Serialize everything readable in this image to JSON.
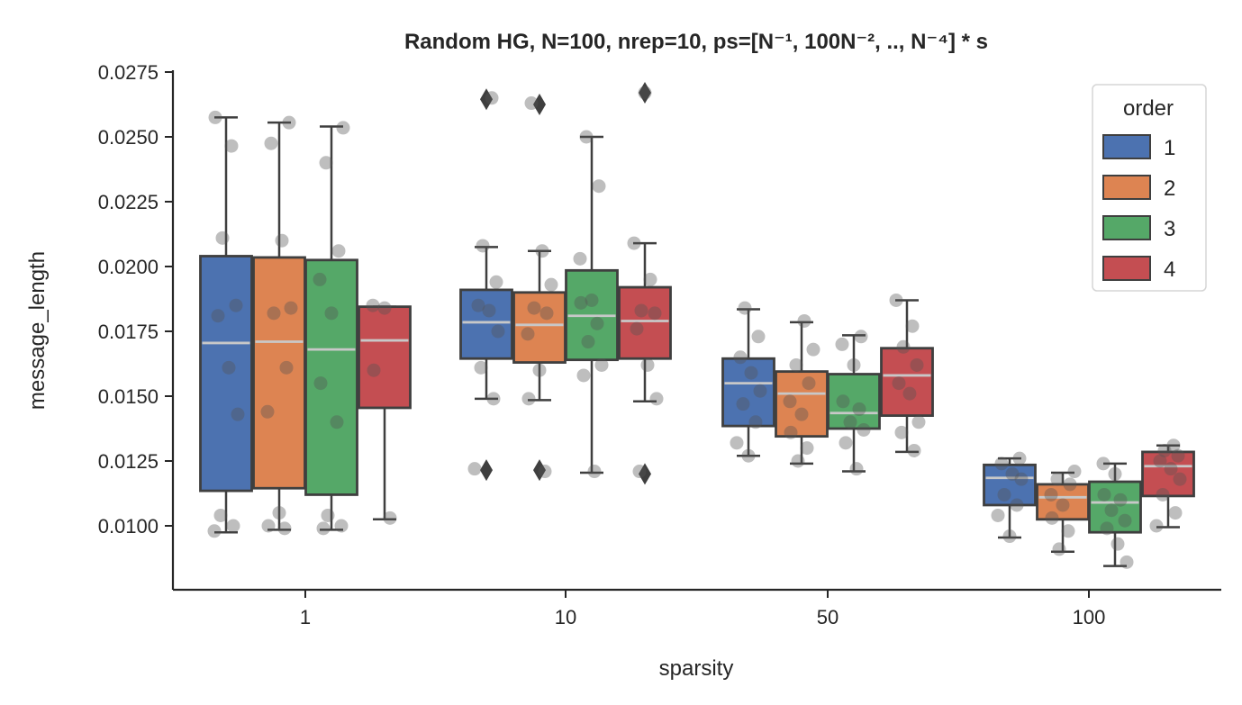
{
  "chart_data": {
    "type": "box",
    "title": "Random HG, N=100, nrep=10, ps=[N⁻¹, 100N⁻², ..,  N⁻⁴] * s",
    "xlabel": "sparsity",
    "ylabel": "message_length",
    "categories": [
      "1",
      "10",
      "50",
      "100"
    ],
    "ylim": [
      0.0078,
      0.0276
    ],
    "yticks": [
      0.01,
      0.0125,
      0.015,
      0.0175,
      0.02,
      0.0225,
      0.025,
      0.0275
    ],
    "ytick_labels": [
      "0.0100",
      "0.0125",
      "0.0150",
      "0.0175",
      "0.0200",
      "0.0225",
      "0.0250",
      "0.0275"
    ],
    "legend": {
      "title": "order",
      "position": "top-right"
    },
    "series": [
      {
        "name": "1",
        "color": "#4c72b0",
        "boxes": [
          {
            "q1": 0.01135,
            "median": 0.01705,
            "q3": 0.0204,
            "whisker_low": 0.00975,
            "whisker_high": 0.02575,
            "outliers": [],
            "points": [
              0.02575,
              0.02465,
              0.0211,
              0.0185,
              0.0181,
              0.0161,
              0.0143,
              0.0104,
              0.01,
              0.0098
            ]
          },
          {
            "q1": 0.01645,
            "median": 0.01785,
            "q3": 0.0191,
            "whisker_low": 0.0149,
            "whisker_high": 0.02075,
            "outliers": [
              0.02645,
              0.01215
            ],
            "points": [
              0.0265,
              0.0208,
              0.0194,
              0.0185,
              0.0183,
              0.0175,
              0.0161,
              0.0149,
              0.0122
            ]
          },
          {
            "q1": 0.01385,
            "median": 0.0155,
            "q3": 0.01645,
            "whisker_low": 0.0127,
            "whisker_high": 0.01835,
            "outliers": [],
            "points": [
              0.0184,
              0.0173,
              0.0165,
              0.0159,
              0.0152,
              0.0147,
              0.014,
              0.0132,
              0.0127
            ]
          },
          {
            "q1": 0.0108,
            "median": 0.01185,
            "q3": 0.01235,
            "whisker_low": 0.00955,
            "whisker_high": 0.0126,
            "outliers": [],
            "points": [
              0.0126,
              0.0124,
              0.012,
              0.0118,
              0.0112,
              0.0108,
              0.0104,
              0.0096
            ]
          }
        ]
      },
      {
        "name": "2",
        "color": "#dd8452",
        "boxes": [
          {
            "q1": 0.01145,
            "median": 0.0171,
            "q3": 0.02035,
            "whisker_low": 0.00985,
            "whisker_high": 0.02555,
            "outliers": [],
            "points": [
              0.02555,
              0.02475,
              0.021,
              0.0184,
              0.0182,
              0.0161,
              0.0144,
              0.0105,
              0.01,
              0.0099
            ]
          },
          {
            "q1": 0.0163,
            "median": 0.01775,
            "q3": 0.019,
            "whisker_low": 0.01485,
            "whisker_high": 0.0206,
            "outliers": [
              0.02625,
              0.01215
            ],
            "points": [
              0.0263,
              0.0206,
              0.0193,
              0.0184,
              0.0182,
              0.0174,
              0.016,
              0.0149,
              0.0121
            ]
          },
          {
            "q1": 0.01345,
            "median": 0.0151,
            "q3": 0.01595,
            "whisker_low": 0.0124,
            "whisker_high": 0.01785,
            "outliers": [],
            "points": [
              0.0179,
              0.0168,
              0.0162,
              0.0155,
              0.0148,
              0.0143,
              0.0136,
              0.013,
              0.0125
            ]
          },
          {
            "q1": 0.01025,
            "median": 0.0111,
            "q3": 0.0116,
            "whisker_low": 0.009,
            "whisker_high": 0.01205,
            "outliers": [],
            "points": [
              0.0121,
              0.0118,
              0.0116,
              0.0112,
              0.0108,
              0.0103,
              0.0098,
              0.0091
            ]
          }
        ]
      },
      {
        "name": "3",
        "color": "#55a868",
        "boxes": [
          {
            "q1": 0.0112,
            "median": 0.0168,
            "q3": 0.02025,
            "whisker_low": 0.00985,
            "whisker_high": 0.0254,
            "outliers": [],
            "points": [
              0.02535,
              0.024,
              0.0206,
              0.0195,
              0.0182,
              0.0155,
              0.014,
              0.0104,
              0.01,
              0.0099
            ]
          },
          {
            "q1": 0.0164,
            "median": 0.0181,
            "q3": 0.01985,
            "whisker_low": 0.01205,
            "whisker_high": 0.025,
            "outliers": [],
            "points": [
              0.025,
              0.0231,
              0.0203,
              0.0187,
              0.0186,
              0.0178,
              0.0171,
              0.0162,
              0.0158,
              0.0121
            ]
          },
          {
            "q1": 0.01375,
            "median": 0.01435,
            "q3": 0.01585,
            "whisker_low": 0.0121,
            "whisker_high": 0.01735,
            "outliers": [],
            "points": [
              0.0173,
              0.017,
              0.0162,
              0.0148,
              0.0145,
              0.014,
              0.0137,
              0.0132,
              0.0122
            ]
          },
          {
            "q1": 0.00975,
            "median": 0.0109,
            "q3": 0.0117,
            "whisker_low": 0.00845,
            "whisker_high": 0.0124,
            "outliers": [],
            "points": [
              0.0124,
              0.012,
              0.0112,
              0.011,
              0.0106,
              0.0102,
              0.0099,
              0.0093,
              0.0086
            ]
          }
        ]
      },
      {
        "name": "4",
        "color": "#c44e52",
        "boxes": [
          {
            "q1": 0.01455,
            "median": 0.01715,
            "q3": 0.01845,
            "whisker_low": 0.01025,
            "whisker_high": 0.01845,
            "outliers": [],
            "points": [
              0.0185,
              0.0184,
              0.016,
              0.0103
            ]
          },
          {
            "q1": 0.01645,
            "median": 0.0179,
            "q3": 0.0192,
            "whisker_low": 0.0148,
            "whisker_high": 0.0209,
            "outliers": [
              0.0267,
              0.012
            ],
            "points": [
              0.0267,
              0.0209,
              0.0195,
              0.0183,
              0.0182,
              0.0176,
              0.0162,
              0.0149,
              0.0121
            ]
          },
          {
            "q1": 0.01425,
            "median": 0.0158,
            "q3": 0.01685,
            "whisker_low": 0.01285,
            "whisker_high": 0.0187,
            "outliers": [],
            "points": [
              0.0187,
              0.0177,
              0.0169,
              0.0162,
              0.0155,
              0.0151,
              0.014,
              0.0136,
              0.0129
            ]
          },
          {
            "q1": 0.01115,
            "median": 0.0123,
            "q3": 0.01285,
            "whisker_low": 0.00995,
            "whisker_high": 0.0131,
            "outliers": [],
            "points": [
              0.0131,
              0.0129,
              0.0127,
              0.0125,
              0.0122,
              0.0118,
              0.0112,
              0.0105,
              0.01
            ]
          }
        ]
      }
    ]
  }
}
